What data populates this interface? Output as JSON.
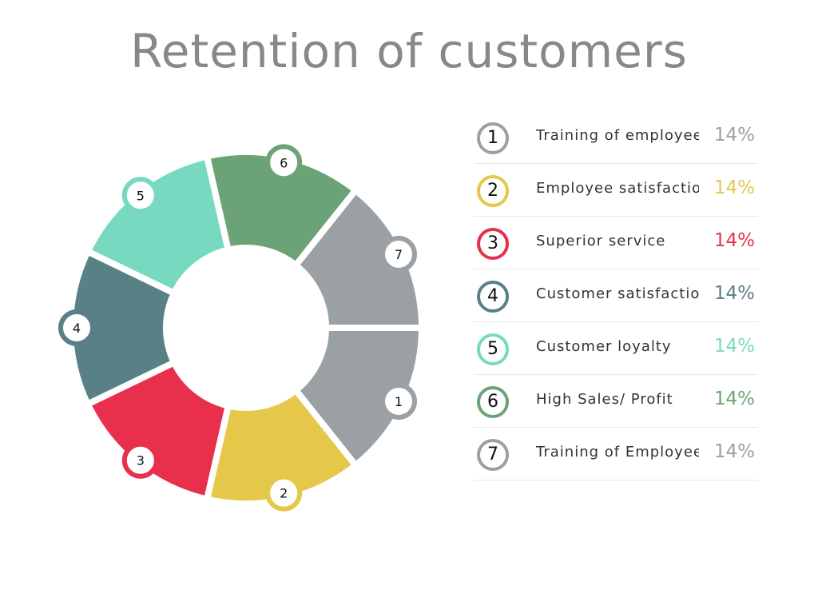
{
  "title": "Retention of customers",
  "chart_data": {
    "type": "pie",
    "title": "Retention of customers",
    "donut": true,
    "categories": [
      "1",
      "2",
      "3",
      "4",
      "5",
      "6",
      "7"
    ],
    "labels": [
      "Training of employees",
      "Employee satisfaction",
      "Superior service",
      "Customer satisfaction",
      "Customer loyalty",
      "High Sales/ Profit",
      "Training of Employees"
    ],
    "values": [
      14,
      14,
      14,
      14,
      14,
      14,
      14
    ],
    "value_labels": [
      "14%",
      "14%",
      "14%",
      "14%",
      "14%",
      "14%",
      "14%"
    ],
    "colors": [
      "#9aa0a4",
      "#e5c84a",
      "#e8304d",
      "#5a8087",
      "#78d9c1",
      "#6ba377",
      "#9aa0a4"
    ],
    "legend": "right"
  }
}
